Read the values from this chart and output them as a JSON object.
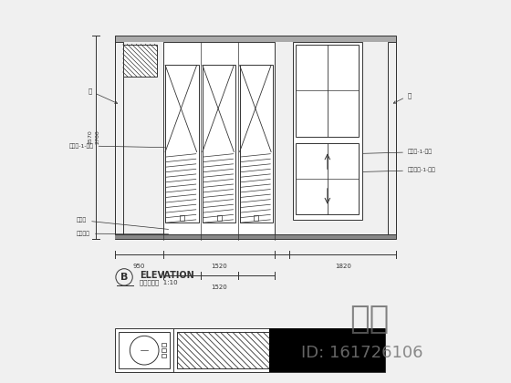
{
  "bg_color": "#f0f0f0",
  "line_color": "#333333",
  "title": "ELEVATION",
  "subtitle": "平展立面图  1:10",
  "label_b": "B",
  "watermark_text": "知来",
  "watermark_id": "ID: 161726106"
}
